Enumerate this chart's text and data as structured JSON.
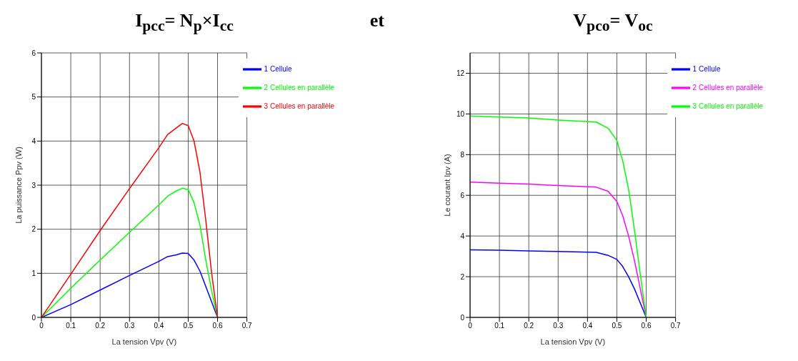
{
  "chart_data": [
    {
      "type": "line",
      "title": "I$_{pcc}$= N$_{p}$×I$_{cc}$",
      "annotations": [
        "et"
      ],
      "xlabel": "La tension Vpv (V)",
      "ylabel": "La puissance Ppv (W)",
      "x": [
        0,
        0.1,
        0.2,
        0.3,
        0.4,
        0.43,
        0.46,
        0.48,
        0.5,
        0.52,
        0.54,
        0.56,
        0.58,
        0.6
      ],
      "series": [
        {
          "name": "1 Cellule",
          "color": "#0000ff",
          "values": [
            0,
            0.29,
            0.62,
            0.95,
            1.27,
            1.38,
            1.42,
            1.46,
            1.45,
            1.3,
            1.05,
            0.7,
            0.35,
            0
          ]
        },
        {
          "name": "2 Cellules en parallèle",
          "color": "#00ff00",
          "values": [
            0,
            0.66,
            1.3,
            1.93,
            2.55,
            2.75,
            2.87,
            2.93,
            2.9,
            2.6,
            2.1,
            1.3,
            0.6,
            0
          ]
        },
        {
          "name": "3 Cellules en parallèle",
          "color": "#ff0000",
          "values": [
            0,
            0.98,
            1.97,
            2.92,
            3.85,
            4.15,
            4.3,
            4.4,
            4.35,
            4.0,
            3.3,
            2.2,
            1.0,
            0
          ]
        }
      ],
      "xlim": [
        0,
        0.7
      ],
      "xticks": [
        0,
        0.1,
        0.2,
        0.3,
        0.4,
        0.5,
        0.6,
        0.7
      ],
      "ylim": [
        0,
        6
      ],
      "yticks": [
        0,
        1,
        2,
        3,
        4,
        5,
        6
      ],
      "grid": true,
      "legend": "top right",
      "marker": "none",
      "line_style": "solid"
    },
    {
      "type": "line",
      "title": "V$_{pco}$= V$_{oc}$",
      "xlabel": "La tension Vpv (V)",
      "ylabel": "Le courant Ipv (A)",
      "x": [
        0,
        0.1,
        0.2,
        0.3,
        0.43,
        0.47,
        0.5,
        0.52,
        0.54,
        0.56,
        0.58,
        0.6
      ],
      "series": [
        {
          "name": "1 Cellule",
          "color": "#0000ff",
          "values": [
            3.32,
            3.3,
            3.27,
            3.24,
            3.2,
            3.05,
            2.85,
            2.5,
            2.0,
            1.4,
            0.7,
            0
          ]
        },
        {
          "name": "2 Cellules en parallèle",
          "color": "#ff00ff",
          "values": [
            6.65,
            6.6,
            6.55,
            6.48,
            6.4,
            6.2,
            5.7,
            5.0,
            4.0,
            2.8,
            1.4,
            0
          ]
        },
        {
          "name": "3 Cellules en parallèle",
          "color": "#00ff00",
          "values": [
            9.9,
            9.85,
            9.8,
            9.7,
            9.6,
            9.3,
            8.7,
            7.7,
            6.3,
            4.3,
            2.1,
            0
          ]
        }
      ],
      "xlim": [
        0,
        0.7
      ],
      "xticks": [
        0,
        0.1,
        0.2,
        0.3,
        0.4,
        0.5,
        0.6,
        0.7
      ],
      "ylim": [
        0,
        13
      ],
      "yticks": [
        0,
        2,
        4,
        6,
        8,
        10,
        12
      ],
      "grid": true,
      "legend": "top right",
      "marker": "none",
      "line_style": "solid"
    }
  ]
}
